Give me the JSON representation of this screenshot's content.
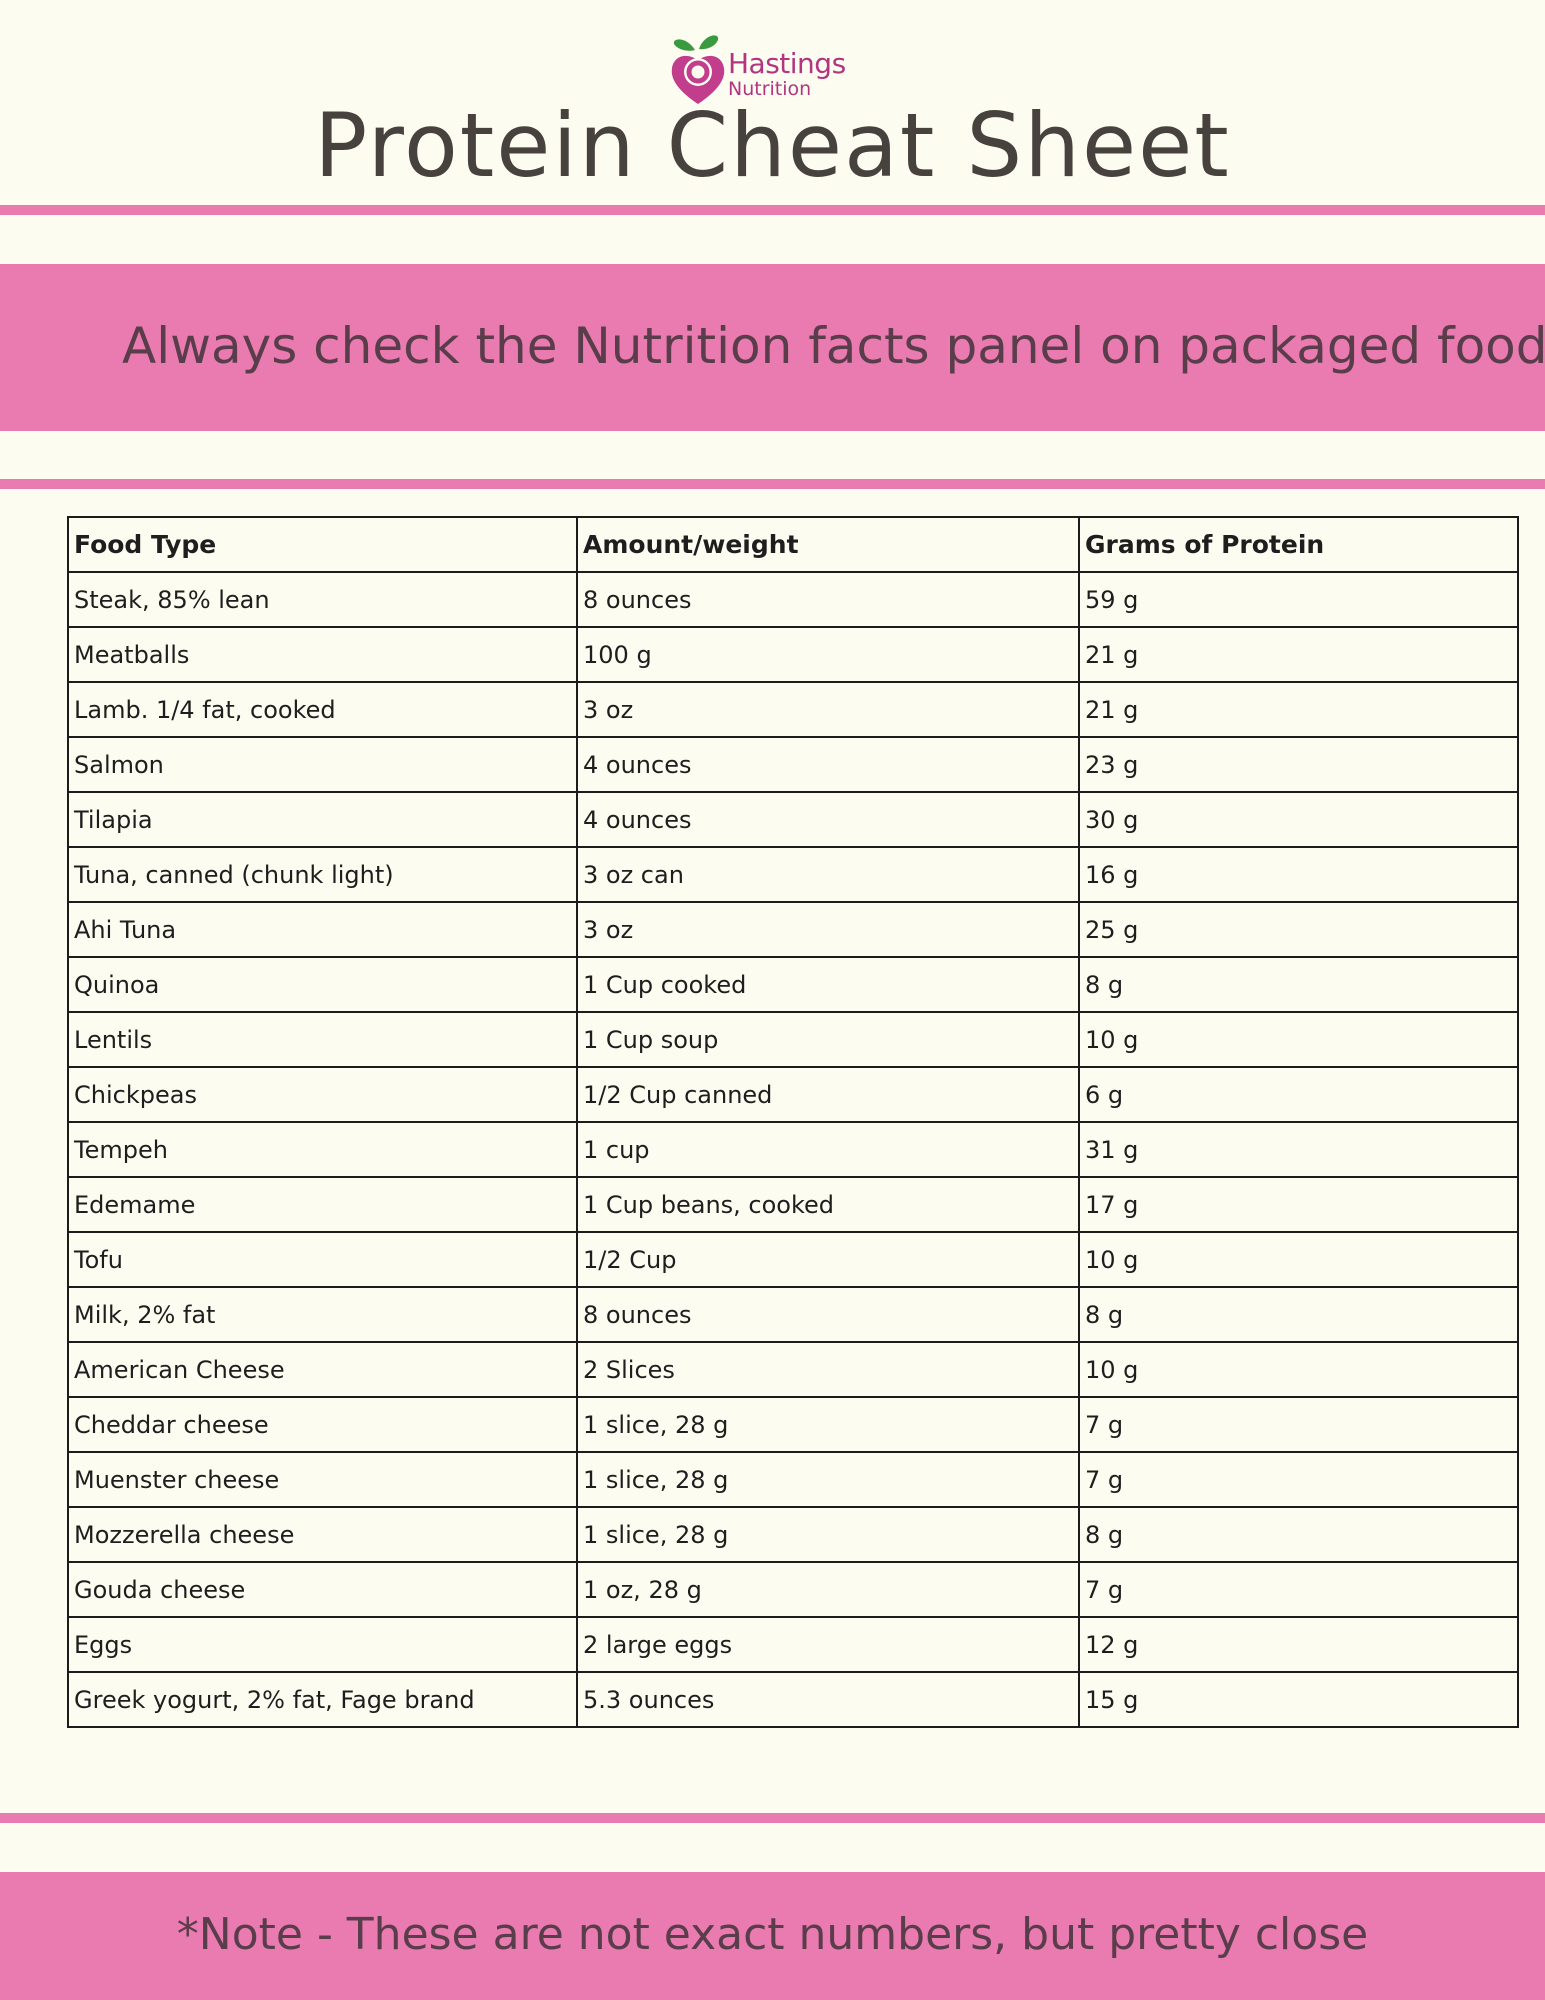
{
  "logo": {
    "name": "Hastings",
    "subtitle": "Nutrition",
    "icon": "peach-heart-logo-icon",
    "brand_color": "#b23580",
    "leaf_color": "#3a9a3f"
  },
  "page": {
    "title": "Protein Cheat Sheet",
    "banner_text": "Always check the Nutrition facts panel on packaged food",
    "footer_note": "*Note - These are not exact numbers, but pretty close",
    "accent_color": "#e97bb0",
    "background_color": "#fdfcf1"
  },
  "table": {
    "headers": [
      "Food Type",
      "Amount/weight",
      "Grams of Protein"
    ],
    "rows": [
      [
        "Steak, 85% lean",
        "8 ounces",
        "59 g"
      ],
      [
        "Meatballs",
        "100 g",
        "21 g"
      ],
      [
        "Lamb. 1/4 fat, cooked",
        "3 oz",
        "21 g"
      ],
      [
        "Salmon",
        "4 ounces",
        "23 g"
      ],
      [
        "Tilapia",
        "4 ounces",
        "30 g"
      ],
      [
        "Tuna, canned (chunk light)",
        "3 oz can",
        "16 g"
      ],
      [
        "Ahi Tuna",
        "3 oz",
        "25 g"
      ],
      [
        "Quinoa",
        "1 Cup cooked",
        "8 g"
      ],
      [
        "Lentils",
        "1 Cup soup",
        "10 g"
      ],
      [
        "Chickpeas",
        "1/2 Cup canned",
        "6 g"
      ],
      [
        "Tempeh",
        "1 cup",
        "31 g"
      ],
      [
        "Edemame",
        "1 Cup beans, cooked",
        "17 g"
      ],
      [
        "Tofu",
        "1/2 Cup",
        "10 g"
      ],
      [
        "Milk, 2% fat",
        "8 ounces",
        "8 g"
      ],
      [
        "American Cheese",
        "2 Slices",
        "10 g"
      ],
      [
        "Cheddar cheese",
        "1 slice, 28 g",
        "7 g"
      ],
      [
        "Muenster cheese",
        "1 slice, 28 g",
        "7 g"
      ],
      [
        "Mozzerella cheese",
        "1 slice, 28 g",
        "8 g"
      ],
      [
        "Gouda cheese",
        "1 oz, 28 g",
        "7 g"
      ],
      [
        "Eggs",
        "2 large eggs",
        "12 g"
      ],
      [
        "Greek yogurt, 2% fat, Fage brand",
        "5.3 ounces",
        "15 g"
      ]
    ]
  }
}
